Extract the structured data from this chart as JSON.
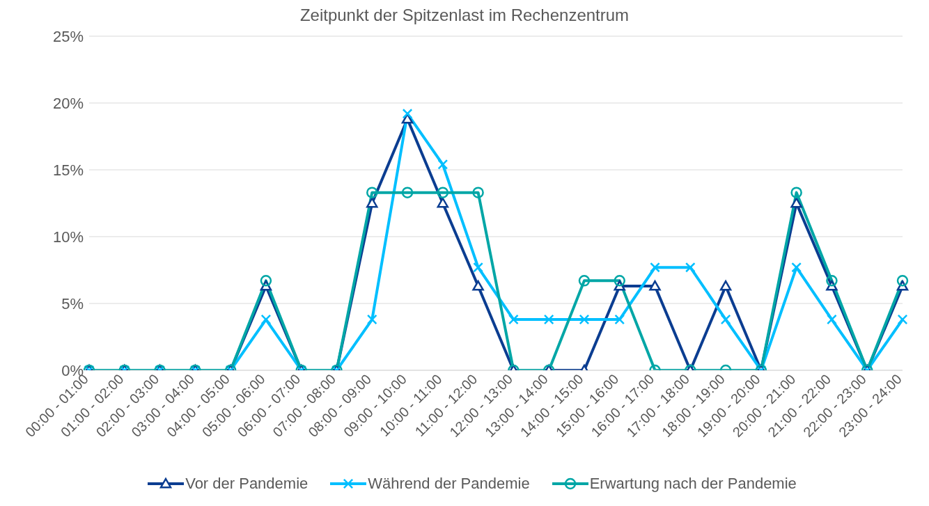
{
  "chart_data": {
    "type": "line",
    "title": "Zeitpunkt der Spitzenlast im Rechenzentrum",
    "categories": [
      "00:00 - 01:00",
      "01:00 - 02:00",
      "02:00 - 03:00",
      "03:00 - 04:00",
      "04:00 - 05:00",
      "05:00 - 06:00",
      "06:00 - 07:00",
      "07:00 - 08:00",
      "08:00 - 09:00",
      "09:00 - 10:00",
      "10:00 - 11:00",
      "11:00 - 12:00",
      "12:00 - 13:00",
      "13:00 - 14:00",
      "14:00 - 15:00",
      "15:00 - 16:00",
      "16:00 - 17:00",
      "17:00 - 18:00",
      "18:00 - 19:00",
      "19:00 - 20:00",
      "20:00 - 21:00",
      "21:00 - 22:00",
      "22:00 - 23:00",
      "23:00 - 24:00"
    ],
    "series": [
      {
        "name": "Vor der Pandemie",
        "color": "#0b3d91",
        "marker": "triangle",
        "values": [
          0,
          0,
          0,
          0,
          0,
          6.3,
          0,
          0,
          12.5,
          18.8,
          12.5,
          6.3,
          0,
          0,
          0,
          6.3,
          6.3,
          0,
          6.3,
          0,
          12.5,
          6.3,
          0,
          6.3
        ]
      },
      {
        "name": "Während der Pandemie",
        "color": "#00bfff",
        "marker": "cross",
        "values": [
          0,
          0,
          0,
          0,
          0,
          3.8,
          0,
          0,
          3.8,
          19.2,
          15.4,
          7.7,
          3.8,
          3.8,
          3.8,
          3.8,
          7.7,
          7.7,
          3.8,
          0,
          7.7,
          3.8,
          0,
          3.8
        ]
      },
      {
        "name": "Erwartung nach der Pandemie",
        "color": "#00a6a6",
        "marker": "circle",
        "values": [
          0,
          0,
          0,
          0,
          0,
          6.7,
          0,
          0,
          13.3,
          13.3,
          13.3,
          13.3,
          0,
          0,
          6.7,
          6.7,
          0,
          0,
          0,
          0,
          13.3,
          6.7,
          0,
          6.7
        ]
      }
    ],
    "ylim": [
      0,
      25
    ],
    "yticks": [
      {
        "value": 0,
        "label": "0%"
      },
      {
        "value": 5,
        "label": "5%"
      },
      {
        "value": 10,
        "label": "10%"
      },
      {
        "value": 15,
        "label": "15%"
      },
      {
        "value": 20,
        "label": "20%"
      },
      {
        "value": 25,
        "label": "25%"
      }
    ],
    "grid": "y",
    "legend": "bottom",
    "line_style": "solid"
  }
}
